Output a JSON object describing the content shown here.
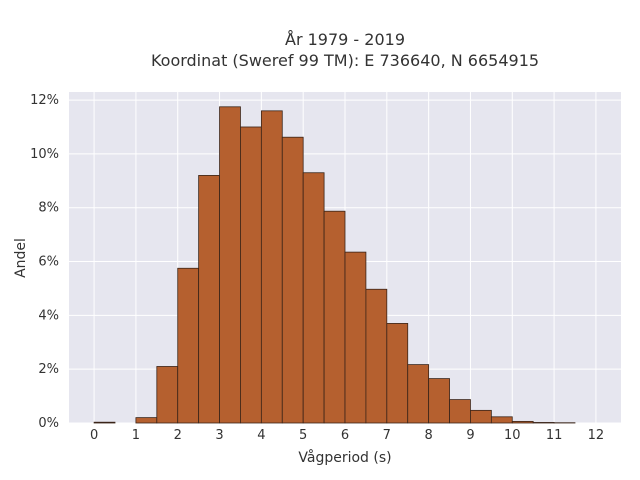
{
  "chart_data": {
    "type": "bar",
    "title_line1": "År 1979 - 2019",
    "title_line2": "Koordinat (Sweref 99 TM): E 736640, N 6654915",
    "xlabel": "Vågperiod (s)",
    "ylabel": "Andel",
    "xlim": [
      -0.6,
      12.6
    ],
    "ylim": [
      0,
      12.3
    ],
    "x_ticks": [
      0,
      1,
      2,
      3,
      4,
      5,
      6,
      7,
      8,
      9,
      10,
      11,
      12
    ],
    "y_ticks": [
      0,
      2,
      4,
      6,
      8,
      10,
      12
    ],
    "y_tick_labels": [
      "0%",
      "2%",
      "4%",
      "6%",
      "8%",
      "10%",
      "12%"
    ],
    "bin_width": 0.5,
    "bins": [
      {
        "x0": 0.0,
        "value": 0.03
      },
      {
        "x0": 0.5,
        "value": 0.0
      },
      {
        "x0": 1.0,
        "value": 0.2
      },
      {
        "x0": 1.5,
        "value": 2.1
      },
      {
        "x0": 2.0,
        "value": 5.75
      },
      {
        "x0": 2.5,
        "value": 9.2
      },
      {
        "x0": 3.0,
        "value": 11.75
      },
      {
        "x0": 3.5,
        "value": 11.0
      },
      {
        "x0": 4.0,
        "value": 11.6
      },
      {
        "x0": 4.5,
        "value": 10.62
      },
      {
        "x0": 5.0,
        "value": 9.3
      },
      {
        "x0": 5.5,
        "value": 7.87
      },
      {
        "x0": 6.0,
        "value": 6.35
      },
      {
        "x0": 6.5,
        "value": 4.97
      },
      {
        "x0": 7.0,
        "value": 3.7
      },
      {
        "x0": 7.5,
        "value": 2.17
      },
      {
        "x0": 8.0,
        "value": 1.65
      },
      {
        "x0": 8.5,
        "value": 0.87
      },
      {
        "x0": 9.0,
        "value": 0.47
      },
      {
        "x0": 9.5,
        "value": 0.23
      },
      {
        "x0": 10.0,
        "value": 0.06
      },
      {
        "x0": 10.5,
        "value": 0.02
      },
      {
        "x0": 11.0,
        "value": 0.01
      }
    ],
    "grid": true,
    "colors": {
      "bar_fill": "#b5602f",
      "bar_edge": "#3a2418",
      "plot_bg": "#e6e6ef",
      "grid": "#ffffff"
    }
  }
}
